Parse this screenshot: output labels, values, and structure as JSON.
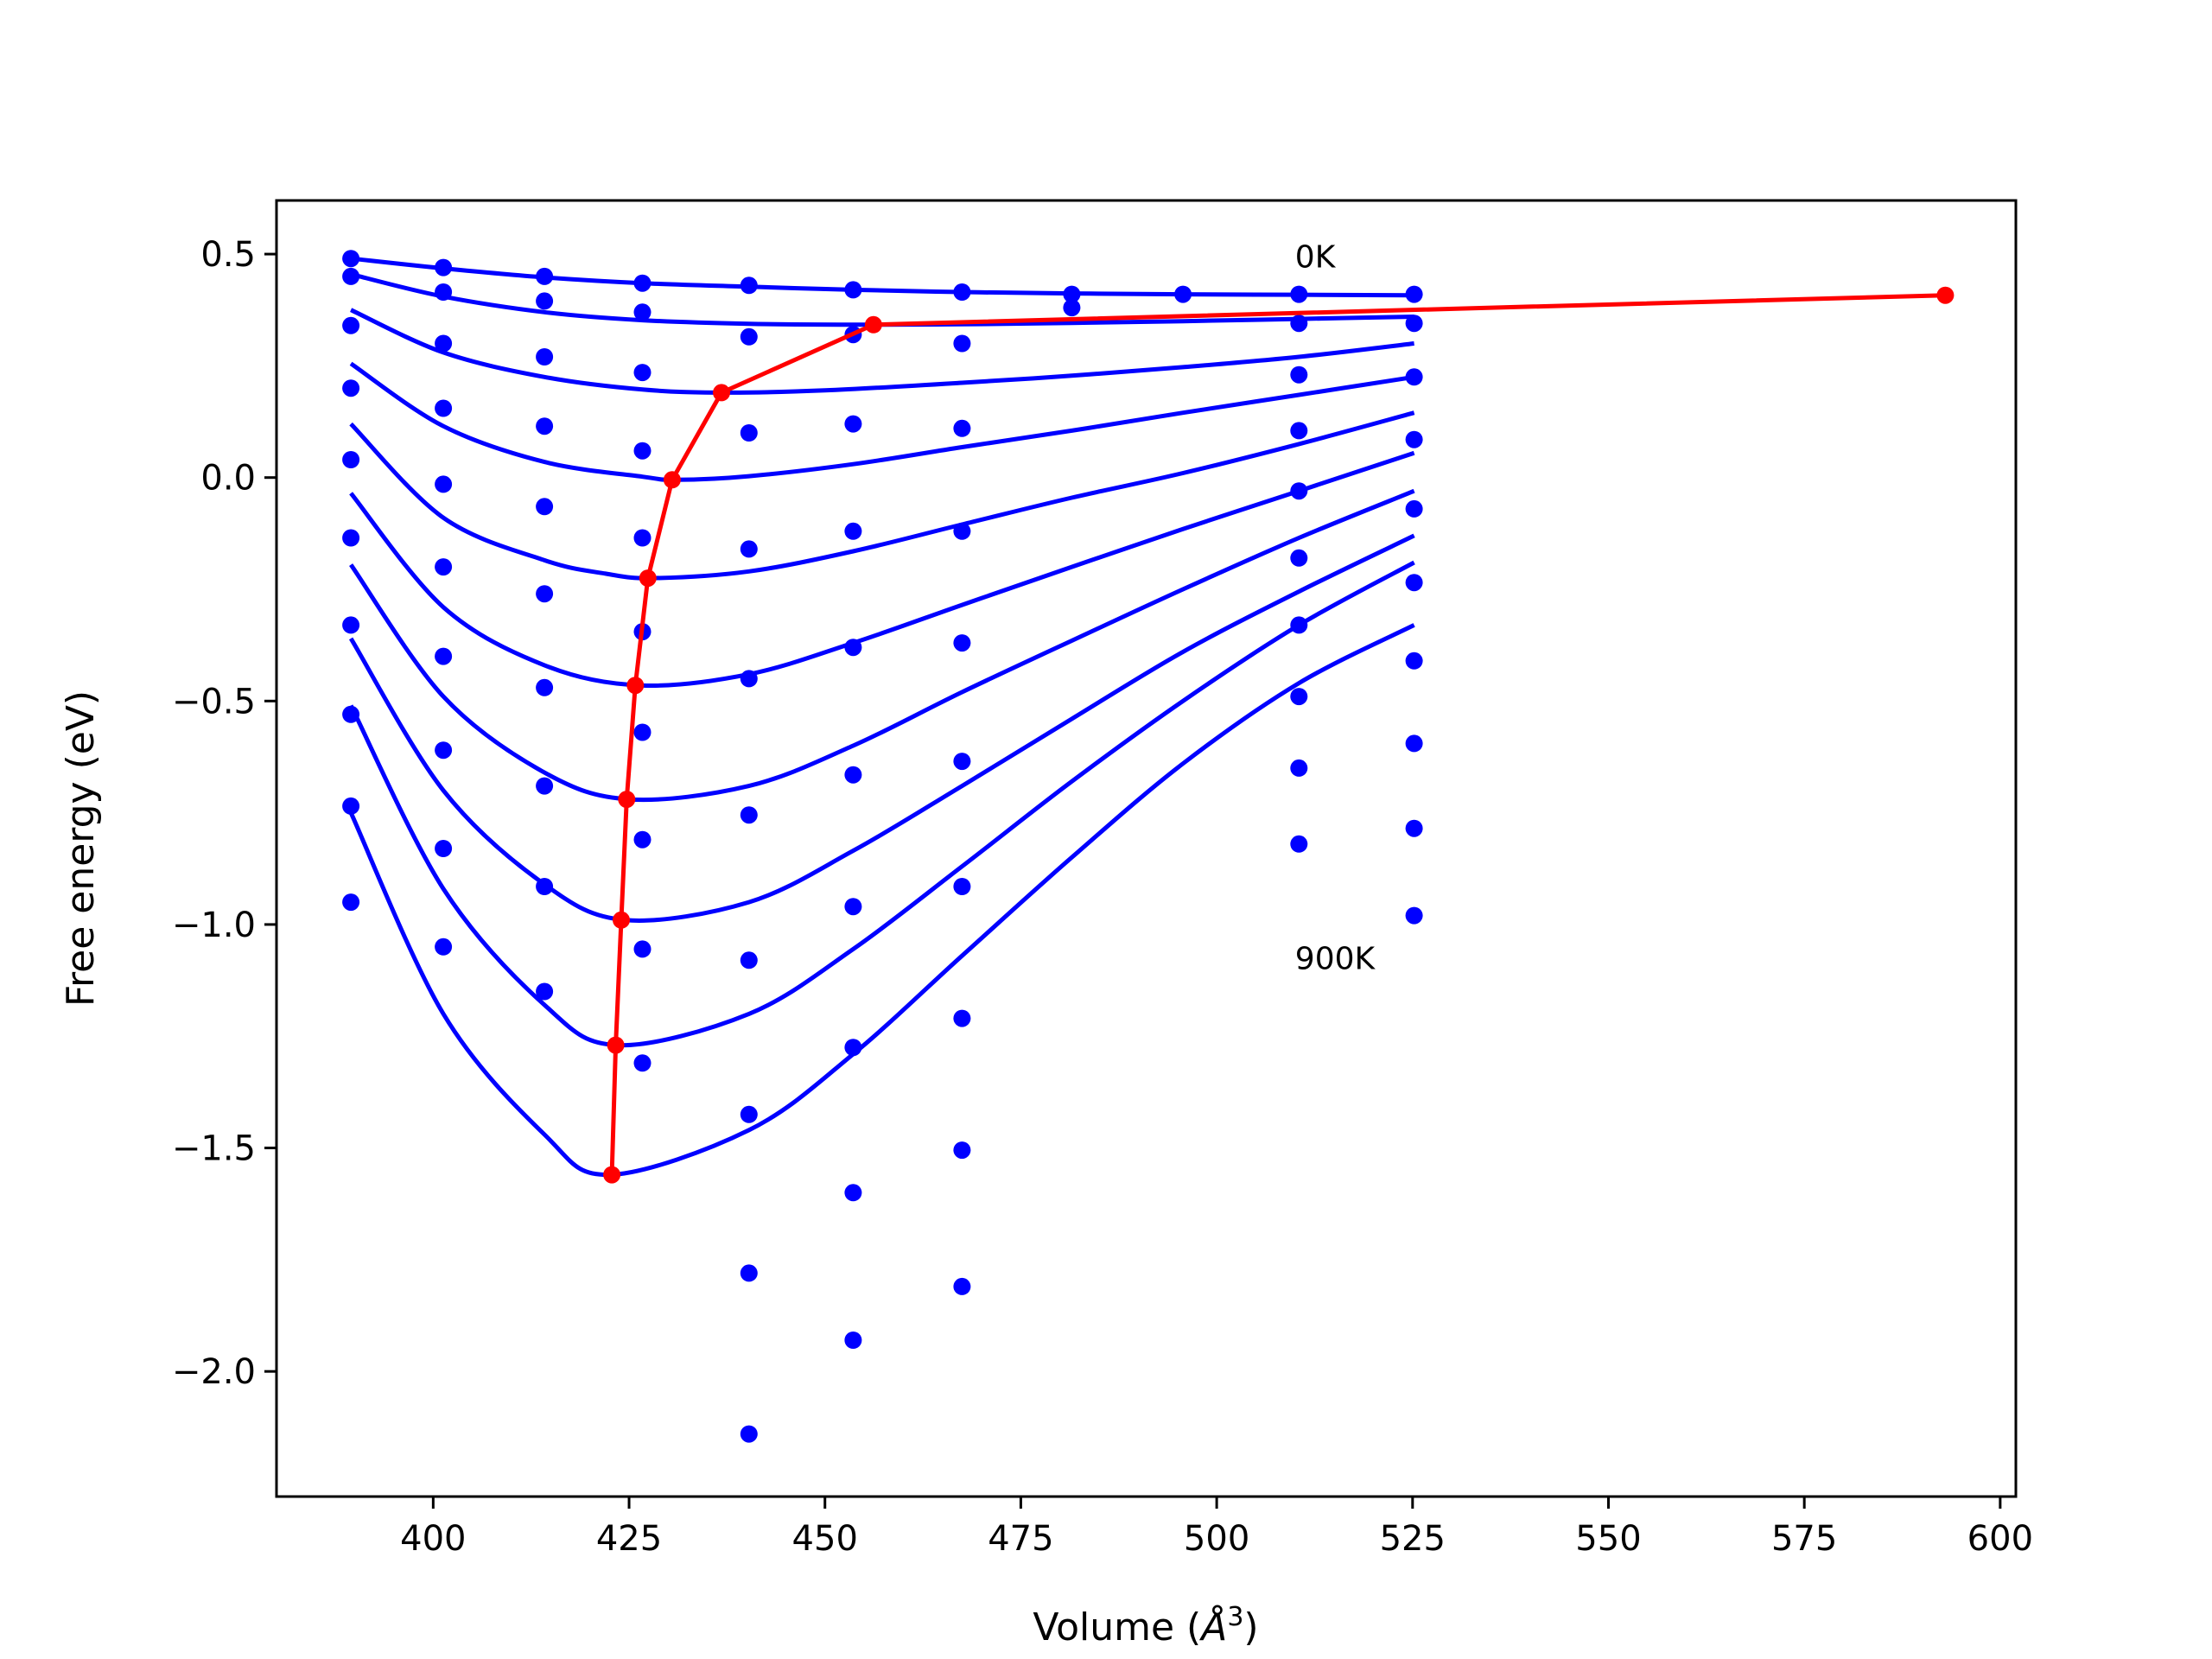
{
  "chart_data": {
    "type": "scatter",
    "title": "",
    "xlabel": "Volume (Å³)",
    "xlabel_prefix": "Volume (",
    "xlabel_unit": "Å",
    "xlabel_sup": "3",
    "xlabel_suffix": ")",
    "ylabel": "Free energy (eV)",
    "xlim": [
      380,
      602
    ],
    "ylim": [
      -2.28,
      0.62
    ],
    "xticks": [
      400,
      425,
      450,
      475,
      500,
      525,
      550,
      575,
      600
    ],
    "xtick_labels": [
      "400",
      "425",
      "450",
      "475",
      "500",
      "525",
      "550",
      "575",
      "600"
    ],
    "yticks": [
      0.5,
      0.0,
      -0.5,
      -1.0,
      -1.5,
      -2.0
    ],
    "ytick_labels": [
      "0.5",
      "0.0",
      "−0.5",
      "−1.0",
      "−1.5",
      "−2.0"
    ],
    "grid": false,
    "legend": "none",
    "annotations": [
      {
        "text": "0K",
        "x": 510,
        "y": 0.47
      },
      {
        "text": "900K",
        "x": 510,
        "y": -1.1
      }
    ],
    "colors": {
      "points": "#0000ff",
      "fits": "#0000ff",
      "minimum_path": "#ff0000"
    },
    "point_volumes": [
      389.5,
      401.3,
      414.2,
      426.7,
      440.3,
      453.6,
      467.5,
      481.5,
      495.7,
      510.5,
      525.2
    ],
    "points": [
      {
        "x": 389.5,
        "y": 0.49
      },
      {
        "x": 401.3,
        "y": 0.47
      },
      {
        "x": 414.2,
        "y": 0.45
      },
      {
        "x": 426.7,
        "y": 0.435
      },
      {
        "x": 440.3,
        "y": 0.43
      },
      {
        "x": 453.6,
        "y": 0.42
      },
      {
        "x": 467.5,
        "y": 0.415
      },
      {
        "x": 481.5,
        "y": 0.41
      },
      {
        "x": 495.7,
        "y": 0.41
      },
      {
        "x": 510.5,
        "y": 0.41
      },
      {
        "x": 525.2,
        "y": 0.41
      },
      {
        "x": 389.5,
        "y": 0.45
      },
      {
        "x": 401.3,
        "y": 0.415
      },
      {
        "x": 414.2,
        "y": 0.395
      },
      {
        "x": 426.7,
        "y": 0.37
      },
      {
        "x": 440.3,
        "y": 0.315
      },
      {
        "x": 453.6,
        "y": 0.32
      },
      {
        "x": 467.5,
        "y": 0.3
      },
      {
        "x": 481.5,
        "y": 0.38
      },
      {
        "x": 510.5,
        "y": 0.345
      },
      {
        "x": 525.2,
        "y": 0.345
      },
      {
        "x": 389.5,
        "y": 0.34
      },
      {
        "x": 401.3,
        "y": 0.3
      },
      {
        "x": 414.2,
        "y": 0.27
      },
      {
        "x": 426.7,
        "y": 0.235
      },
      {
        "x": 440.3,
        "y": 0.1
      },
      {
        "x": 453.6,
        "y": 0.12
      },
      {
        "x": 467.5,
        "y": 0.11
      },
      {
        "x": 510.5,
        "y": 0.23
      },
      {
        "x": 525.2,
        "y": 0.225
      },
      {
        "x": 389.5,
        "y": 0.2
      },
      {
        "x": 401.3,
        "y": 0.155
      },
      {
        "x": 414.2,
        "y": 0.115
      },
      {
        "x": 426.7,
        "y": 0.06
      },
      {
        "x": 440.3,
        "y": -0.16
      },
      {
        "x": 453.6,
        "y": -0.12
      },
      {
        "x": 467.5,
        "y": -0.12
      },
      {
        "x": 510.5,
        "y": 0.105
      },
      {
        "x": 525.2,
        "y": 0.085
      },
      {
        "x": 389.5,
        "y": 0.04
      },
      {
        "x": 401.3,
        "y": -0.015
      },
      {
        "x": 414.2,
        "y": -0.065
      },
      {
        "x": 426.7,
        "y": -0.135
      },
      {
        "x": 440.3,
        "y": -0.45
      },
      {
        "x": 453.6,
        "y": -0.38
      },
      {
        "x": 467.5,
        "y": -0.37
      },
      {
        "x": 510.5,
        "y": -0.03
      },
      {
        "x": 525.2,
        "y": -0.07
      },
      {
        "x": 389.5,
        "y": -0.135
      },
      {
        "x": 401.3,
        "y": -0.2
      },
      {
        "x": 414.2,
        "y": -0.26
      },
      {
        "x": 426.7,
        "y": -0.345
      },
      {
        "x": 440.3,
        "y": -0.755
      },
      {
        "x": 453.6,
        "y": -0.665
      },
      {
        "x": 467.5,
        "y": -0.635
      },
      {
        "x": 510.5,
        "y": -0.18
      },
      {
        "x": 525.2,
        "y": -0.235
      },
      {
        "x": 389.5,
        "y": -0.33
      },
      {
        "x": 401.3,
        "y": -0.4
      },
      {
        "x": 414.2,
        "y": -0.47
      },
      {
        "x": 426.7,
        "y": -0.57
      },
      {
        "x": 440.3,
        "y": -1.08
      },
      {
        "x": 453.6,
        "y": -0.96
      },
      {
        "x": 467.5,
        "y": -0.915
      },
      {
        "x": 510.5,
        "y": -0.33
      },
      {
        "x": 525.2,
        "y": -0.41
      },
      {
        "x": 389.5,
        "y": -0.53
      },
      {
        "x": 401.3,
        "y": -0.61
      },
      {
        "x": 414.2,
        "y": -0.69
      },
      {
        "x": 426.7,
        "y": -0.81
      },
      {
        "x": 440.3,
        "y": -1.425
      },
      {
        "x": 453.6,
        "y": -1.275
      },
      {
        "x": 467.5,
        "y": -1.21
      },
      {
        "x": 510.5,
        "y": -0.49
      },
      {
        "x": 525.2,
        "y": -0.595
      },
      {
        "x": 389.5,
        "y": -0.735
      },
      {
        "x": 401.3,
        "y": -0.83
      },
      {
        "x": 414.2,
        "y": -0.915
      },
      {
        "x": 426.7,
        "y": -1.055
      },
      {
        "x": 440.3,
        "y": -1.78
      },
      {
        "x": 453.6,
        "y": -1.6
      },
      {
        "x": 467.5,
        "y": -1.505
      },
      {
        "x": 510.5,
        "y": -0.65
      },
      {
        "x": 525.2,
        "y": -0.785
      },
      {
        "x": 389.5,
        "y": -0.95
      },
      {
        "x": 401.3,
        "y": -1.05
      },
      {
        "x": 414.2,
        "y": -1.15
      },
      {
        "x": 426.7,
        "y": -1.31
      },
      {
        "x": 440.3,
        "y": -2.14
      },
      {
        "x": 453.6,
        "y": -1.93
      },
      {
        "x": 467.5,
        "y": -1.81
      },
      {
        "x": 510.5,
        "y": -0.82
      },
      {
        "x": 525.2,
        "y": -0.98
      }
    ],
    "fit_curves": [
      {
        "x": [
          389.5,
          401.3,
          414.2,
          426.7,
          440.3,
          453.6,
          467.5,
          481.5,
          495.7,
          510.5,
          525.2
        ],
        "y": [
          0.49,
          0.468,
          0.448,
          0.435,
          0.427,
          0.42,
          0.415,
          0.412,
          0.41,
          0.409,
          0.408
        ]
      },
      {
        "x": [
          389.5,
          401.3,
          414.2,
          426.7,
          440.3,
          453.6,
          467.5,
          481.5,
          495.7,
          510.5,
          525.2
        ],
        "y": [
          0.455,
          0.405,
          0.37,
          0.352,
          0.344,
          0.342,
          0.343,
          0.346,
          0.35,
          0.355,
          0.36
        ]
      },
      {
        "x": [
          389.5,
          401.3,
          414.2,
          426.7,
          437,
          450,
          467.5,
          481.5,
          495.7,
          510.5,
          525.2
        ],
        "y": [
          0.375,
          0.28,
          0.225,
          0.197,
          0.19,
          0.195,
          0.212,
          0.228,
          0.247,
          0.27,
          0.3
        ]
      },
      {
        "x": [
          389.5,
          401.3,
          414.2,
          426.7,
          431,
          440.3,
          453.6,
          467.5,
          481.5,
          495.7,
          510.5,
          525.2
        ],
        "y": [
          0.255,
          0.115,
          0.035,
          0.002,
          -0.005,
          0.003,
          0.03,
          0.068,
          0.105,
          0.145,
          0.185,
          0.225
        ]
      },
      {
        "x": [
          389.5,
          401.3,
          414.2,
          422,
          428,
          440.3,
          453.6,
          467.5,
          481.5,
          495.7,
          510.5,
          525.2
        ],
        "y": [
          0.12,
          -0.09,
          -0.185,
          -0.215,
          -0.225,
          -0.21,
          -0.165,
          -0.105,
          -0.045,
          0.01,
          0.075,
          0.145
        ]
      },
      {
        "x": [
          389.5,
          401.3,
          414.2,
          426.5,
          440.3,
          453.6,
          467.5,
          481.5,
          495.7,
          510.5,
          525.2
        ],
        "y": [
          -0.035,
          -0.29,
          -0.42,
          -0.465,
          -0.44,
          -0.37,
          -0.285,
          -0.2,
          -0.115,
          -0.03,
          0.055
        ]
      },
      {
        "x": [
          389.5,
          401.3,
          414.2,
          425,
          440.3,
          453.6,
          467.5,
          481.5,
          495.7,
          510.5,
          525.2
        ],
        "y": [
          -0.195,
          -0.49,
          -0.66,
          -0.72,
          -0.69,
          -0.6,
          -0.48,
          -0.365,
          -0.25,
          -0.135,
          -0.03
        ]
      },
      {
        "x": [
          389.5,
          401.3,
          414.2,
          424.5,
          440.3,
          453.6,
          467.5,
          481.5,
          495.7,
          510.5,
          525.2
        ],
        "y": [
          -0.36,
          -0.7,
          -0.91,
          -0.99,
          -0.95,
          -0.835,
          -0.69,
          -0.54,
          -0.39,
          -0.255,
          -0.13
        ]
      },
      {
        "x": [
          389.5,
          401.3,
          414.2,
          423.5,
          440.3,
          453.6,
          467.5,
          481.5,
          495.7,
          510.5,
          525.2
        ],
        "y": [
          -0.51,
          -0.92,
          -1.18,
          -1.27,
          -1.2,
          -1.055,
          -0.87,
          -0.68,
          -0.5,
          -0.33,
          -0.19
        ]
      },
      {
        "x": [
          389.5,
          401.3,
          414.2,
          422.5,
          440.3,
          453.6,
          467.5,
          481.5,
          495.7,
          510.5,
          525.2
        ],
        "y": [
          -0.75,
          -1.2,
          -1.47,
          -1.56,
          -1.46,
          -1.29,
          -1.07,
          -0.85,
          -0.64,
          -0.46,
          -0.33
        ]
      }
    ],
    "minimum_path": {
      "x": [
        422.8,
        423.3,
        424.0,
        424.7,
        425.8,
        427.4,
        430.5,
        436.8,
        456.2,
        593.0
      ],
      "y": [
        -1.56,
        -1.27,
        -0.99,
        -0.72,
        -0.465,
        -0.225,
        -0.005,
        0.19,
        0.342,
        0.408
      ]
    }
  }
}
